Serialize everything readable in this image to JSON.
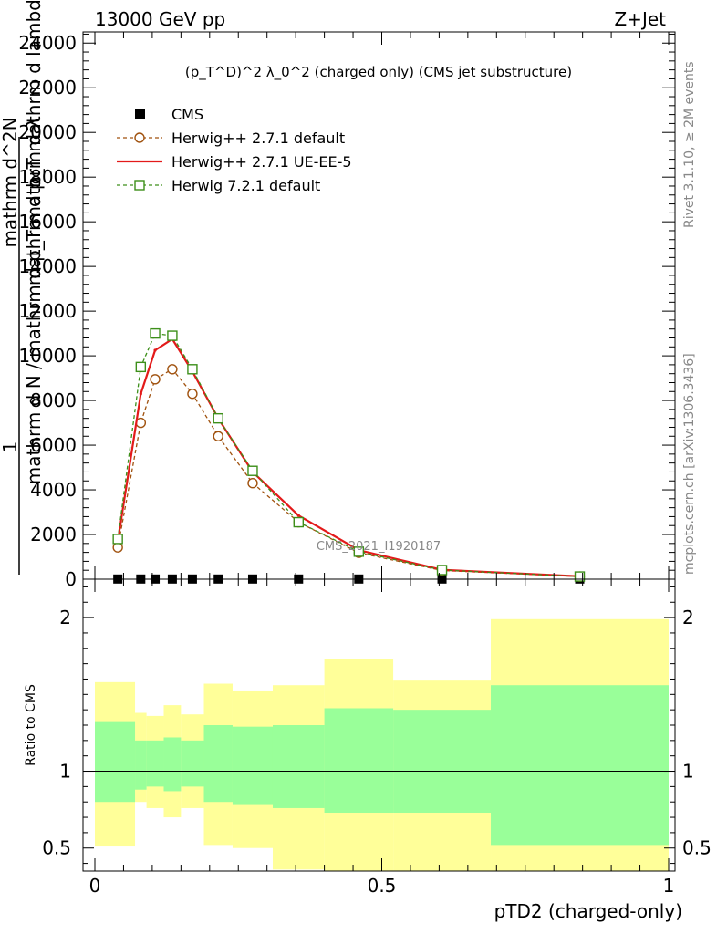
{
  "header": {
    "energy": "13000 GeV pp",
    "process": "Z+Jet"
  },
  "side_labels": {
    "rivet": "Rivet 3.1.10, ≥ 2M events",
    "mcplots": "mcplots.cern.ch [arXiv:1306.3436]"
  },
  "chart_data": [
    {
      "type": "line",
      "panel": "main",
      "title": "(p_T^D)^2 λ_0^2 (charged only) (CMS jet substructure)",
      "ylabel_parts": [
        "1",
        "mathrm d N / mathrm d p_T mathrm d λ",
        "mathrm d^2N",
        "mathrm d p_T mathrm d lambda"
      ],
      "xlabel": "",
      "xlim": [
        0,
        1
      ],
      "ylim": [
        0,
        24500
      ],
      "yticks": [
        0,
        2000,
        4000,
        6000,
        8000,
        10000,
        12000,
        14000,
        16000,
        18000,
        20000,
        22000,
        24000
      ],
      "xticks": [
        0,
        0.5,
        1
      ],
      "watermark": "CMS_2021_I1920187",
      "legend_position": "top-left",
      "x": [
        0.04,
        0.08,
        0.105,
        0.135,
        0.17,
        0.215,
        0.275,
        0.355,
        0.46,
        0.605,
        0.845
      ],
      "series": [
        {
          "name": "CMS",
          "style": "markers",
          "color": "#000000",
          "values": [
            8,
            8,
            8,
            8,
            8,
            8,
            8,
            8,
            8,
            8,
            8
          ]
        },
        {
          "name": "Herwig++ 2.7.1 default",
          "style": "dashed-circle",
          "color": "#a0520f",
          "values": [
            1420,
            7000,
            8950,
            9400,
            8300,
            6400,
            4300,
            2550,
            1180,
            390,
            120
          ]
        },
        {
          "name": "Herwig++ 2.7.1 UE-EE-5",
          "style": "solid",
          "color": "#e31a1a",
          "values": [
            1700,
            8300,
            10250,
            10750,
            9300,
            7200,
            4800,
            2850,
            1300,
            420,
            130
          ]
        },
        {
          "name": "Herwig 7.2.1 default",
          "style": "dashed-square",
          "color": "#3d8f1a",
          "values": [
            1800,
            9500,
            11000,
            10900,
            9400,
            7200,
            4850,
            2550,
            1230,
            410,
            120
          ]
        }
      ]
    },
    {
      "type": "area",
      "panel": "ratio",
      "ylabel": "Ratio to CMS",
      "xlabel": "pTD2 (charged-only)",
      "xlim": [
        0,
        1
      ],
      "ylim": [
        0.35,
        2.25
      ],
      "yticks": [
        0.5,
        1,
        2
      ],
      "xticks": [
        0,
        0.5,
        1
      ],
      "bins": [
        [
          0,
          0.07
        ],
        [
          0.07,
          0.09
        ],
        [
          0.09,
          0.12
        ],
        [
          0.12,
          0.15
        ],
        [
          0.15,
          0.19
        ],
        [
          0.19,
          0.24
        ],
        [
          0.24,
          0.31
        ],
        [
          0.31,
          0.4
        ],
        [
          0.4,
          0.52
        ],
        [
          0.52,
          0.69
        ],
        [
          0.69,
          1.0
        ]
      ],
      "inner_band": {
        "name": "stat",
        "color": "#99ff99",
        "low": [
          0.8,
          0.88,
          0.9,
          0.87,
          0.9,
          0.8,
          0.78,
          0.76,
          0.73,
          0.73,
          0.52
        ],
        "high": [
          1.32,
          1.2,
          1.2,
          1.22,
          1.2,
          1.3,
          1.29,
          1.3,
          1.41,
          1.4,
          1.56
        ]
      },
      "outer_band": {
        "name": "total",
        "color": "#ffff99",
        "low": [
          0.51,
          0.8,
          0.76,
          0.7,
          0.76,
          0.52,
          0.5,
          0.36,
          0.31,
          0.35,
          0.34
        ],
        "high": [
          1.58,
          1.38,
          1.36,
          1.43,
          1.37,
          1.57,
          1.52,
          1.56,
          1.73,
          1.59,
          1.99
        ]
      },
      "reference_line": 1
    }
  ]
}
